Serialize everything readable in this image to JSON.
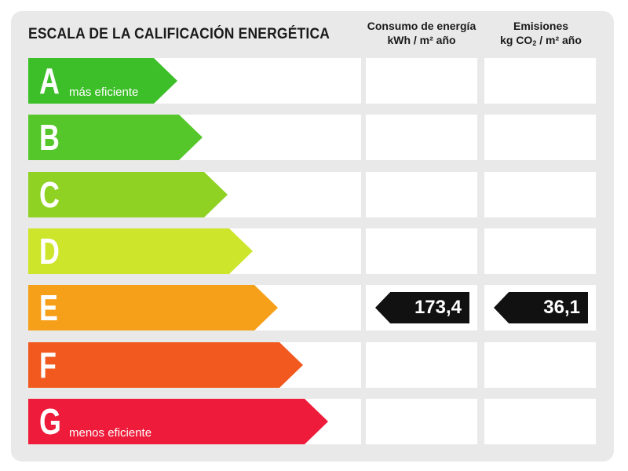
{
  "title": "ESCALA DE LA CALIFICACIÓN ENERGÉTICA",
  "columns": {
    "consumo": {
      "line1": "Consumo de energía",
      "line2": "kWh / m² año"
    },
    "emisiones": {
      "line1": "Emisiones",
      "line2_pre": "kg CO",
      "line2_sub": "2",
      "line2_post": " / m² año"
    }
  },
  "ratings": [
    {
      "letter": "A",
      "color": "#3dbf29",
      "subtitle": "más eficiente"
    },
    {
      "letter": "B",
      "color": "#56c72a",
      "subtitle": ""
    },
    {
      "letter": "C",
      "color": "#8fd224",
      "subtitle": ""
    },
    {
      "letter": "D",
      "color": "#cde52a",
      "subtitle": ""
    },
    {
      "letter": "E",
      "color": "#f6a01a",
      "subtitle": ""
    },
    {
      "letter": "F",
      "color": "#f1591f",
      "subtitle": ""
    },
    {
      "letter": "G",
      "color": "#ee1c3a",
      "subtitle": "menos eficiente"
    }
  ],
  "current": {
    "rating": "E",
    "consumo_value": "173,4",
    "emisiones_value": "36,1"
  }
}
